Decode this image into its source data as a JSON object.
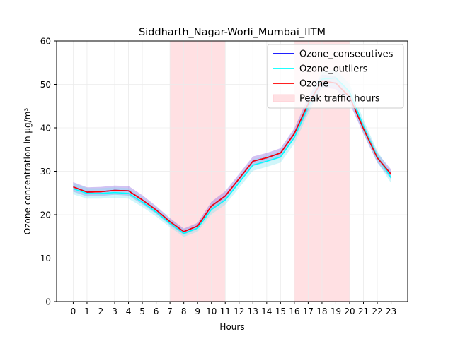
{
  "chart_data": {
    "type": "line",
    "title": "Siddharth_Nagar-Worli_Mumbai_IITM",
    "xlabel": "Hours",
    "ylabel": "Ozone concentration in µg/m³",
    "x": [
      0,
      1,
      2,
      3,
      4,
      5,
      6,
      7,
      8,
      9,
      10,
      11,
      12,
      13,
      14,
      15,
      16,
      17,
      18,
      19,
      20,
      21,
      22,
      23
    ],
    "xlim": [
      -1.2,
      24.2
    ],
    "ylim": [
      0,
      60
    ],
    "yticks": [
      0,
      10,
      20,
      30,
      40,
      50,
      60
    ],
    "grid": true,
    "legend_position": "top-right",
    "shaded_regions": [
      {
        "label": "Peak traffic hours",
        "x0": 7,
        "x1": 11,
        "color": "#ffe0e3"
      },
      {
        "label": "Peak traffic hours",
        "x0": 16,
        "x1": 20,
        "color": "#ffe0e3"
      }
    ],
    "legend": [
      {
        "label": "Ozone_consecutives",
        "color": "#0000ff",
        "kind": "line"
      },
      {
        "label": "Ozone_outliers",
        "color": "#00ffff",
        "kind": "line"
      },
      {
        "label": "Ozone",
        "color": "#ff0000",
        "kind": "line"
      },
      {
        "label": "Peak traffic hours",
        "color": "#ffe0e3",
        "kind": "patch"
      }
    ],
    "series": [
      {
        "name": "Ozone_consecutives",
        "color": "#0000ff",
        "values": [
          26.4,
          25.2,
          25.3,
          25.6,
          25.5,
          23.4,
          21.1,
          18.4,
          16.1,
          17.4,
          22.0,
          24.3,
          28.3,
          32.3,
          33.1,
          34.2,
          38.7,
          45.5,
          50.8,
          50.3,
          47.1,
          39.8,
          33.1,
          29.3
        ],
        "band_lower": [
          25.3,
          24.2,
          24.3,
          24.6,
          24.4,
          22.4,
          20.2,
          17.6,
          15.4,
          16.7,
          21.0,
          23.2,
          27.2,
          31.2,
          32.1,
          33.1,
          37.5,
          44.0,
          49.3,
          48.9,
          45.7,
          38.6,
          32.0,
          28.2
        ],
        "band_upper": [
          27.5,
          26.3,
          26.4,
          26.7,
          26.6,
          24.5,
          22.0,
          19.2,
          16.8,
          18.1,
          23.0,
          25.4,
          29.4,
          33.4,
          34.2,
          35.3,
          39.9,
          47.0,
          52.3,
          51.8,
          48.5,
          41.0,
          34.2,
          30.4
        ]
      },
      {
        "name": "Ozone_outliers",
        "color": "#00ffff",
        "values": [
          26.0,
          24.9,
          24.9,
          25.1,
          24.9,
          22.9,
          20.6,
          18.0,
          15.7,
          16.9,
          21.2,
          23.4,
          27.4,
          31.4,
          32.3,
          33.3,
          37.8,
          44.9,
          51.2,
          51.5,
          48.3,
          40.3,
          33.4,
          28.5
        ],
        "band_lower": [
          24.7,
          23.7,
          23.7,
          23.9,
          23.7,
          21.8,
          19.6,
          17.1,
          14.9,
          16.1,
          20.1,
          22.3,
          26.2,
          30.1,
          31.0,
          32.0,
          36.4,
          43.2,
          49.4,
          49.6,
          46.5,
          38.8,
          32.1,
          27.3
        ],
        "band_upper": [
          27.3,
          26.1,
          26.1,
          26.3,
          26.1,
          24.0,
          21.6,
          18.9,
          16.5,
          17.7,
          22.3,
          24.5,
          28.6,
          32.7,
          33.6,
          34.6,
          39.2,
          46.6,
          53.0,
          53.4,
          50.1,
          41.8,
          34.7,
          29.7
        ]
      },
      {
        "name": "Ozone",
        "color": "#ff0000",
        "values": [
          26.4,
          25.2,
          25.3,
          25.6,
          25.5,
          23.4,
          21.1,
          18.4,
          16.1,
          17.4,
          22.0,
          24.3,
          28.3,
          32.3,
          33.1,
          34.2,
          38.7,
          45.5,
          50.8,
          50.3,
          47.1,
          39.8,
          33.1,
          29.3
        ]
      }
    ]
  }
}
